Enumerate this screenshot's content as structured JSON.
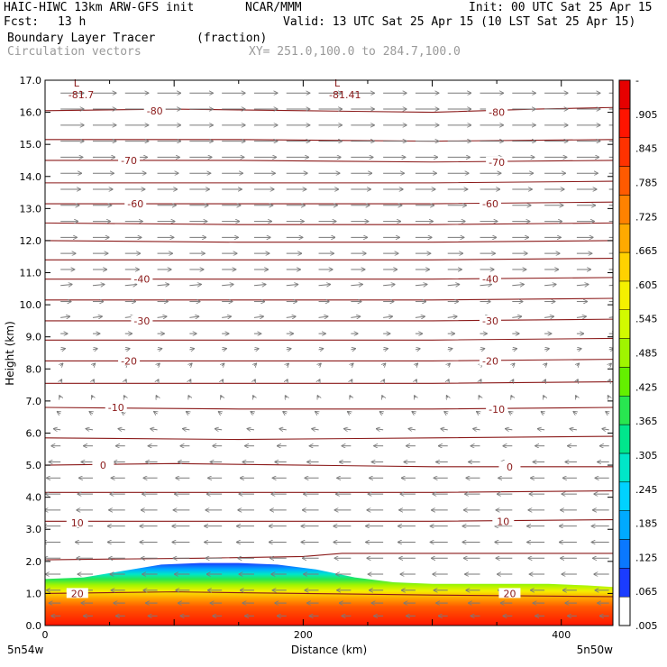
{
  "header": {
    "title": "HAIC-HIWC 13km ARW-GFS init",
    "org": "NCAR/MMM",
    "init": "Init: 00 UTC Sat 25 Apr 15",
    "fcst_label": "Fcst:",
    "fcst_value": "13 h",
    "valid": "Valid: 13 UTC Sat 25 Apr 15 (10 LST Sat 25 Apr 15)",
    "field": "Boundary Layer Tracer",
    "field_units": "(fraction)",
    "vectors": "Circulation vectors",
    "xsec": "XY= 251.0,100.0 to 284.7,100.0"
  },
  "colors": {
    "contour": "#8b1a1a",
    "vector": "#7a7a7a",
    "colorbar": [
      "#ffffff",
      "#1a3cff",
      "#0a78ff",
      "#00aaff",
      "#00d2ff",
      "#00e6c8",
      "#00e68c",
      "#28e650",
      "#64f000",
      "#a0f500",
      "#d2fa00",
      "#f5f000",
      "#ffd200",
      "#ffaa00",
      "#ff8200",
      "#ff5a00",
      "#ff3200",
      "#ff1400",
      "#e60000"
    ]
  },
  "chart_data": {
    "type": "contour",
    "xlabel": "Distance (km)",
    "ylabel": "Height (km)",
    "xlim": [
      0,
      440
    ],
    "ylim": [
      0,
      17
    ],
    "x_ticks": [
      0,
      200,
      400
    ],
    "y_ticks": [
      "0.0",
      "1.0",
      "2.0",
      "3.0",
      "4.0",
      "5.0",
      "6.0",
      "7.0",
      "8.0",
      "9.0",
      "10.0",
      "11.0",
      "12.0",
      "13.0",
      "14.0",
      "15.0",
      "16.0",
      "17.0"
    ],
    "x_endpoints": [
      "5n54w",
      "5n50w"
    ],
    "colorbar_labels": [
      "-",
      ".905",
      ".845",
      ".785",
      ".725",
      ".665",
      ".605",
      ".545",
      ".485",
      ".425",
      ".365",
      ".305",
      ".245",
      ".185",
      ".125",
      ".065",
      ".005"
    ],
    "contour_labels": [
      {
        "text": "-80",
        "x": 85,
        "y": 16.05
      },
      {
        "text": "-80",
        "x": 350,
        "y": 16.0
      },
      {
        "text": "-70",
        "x": 65,
        "y": 14.5
      },
      {
        "text": "-70",
        "x": 350,
        "y": 14.45
      },
      {
        "text": "-60",
        "x": 70,
        "y": 13.15
      },
      {
        "text": "-60",
        "x": 345,
        "y": 13.15
      },
      {
        "text": "-40",
        "x": 75,
        "y": 10.8
      },
      {
        "text": "-40",
        "x": 345,
        "y": 10.8
      },
      {
        "text": "-30",
        "x": 75,
        "y": 9.5
      },
      {
        "text": "-30",
        "x": 345,
        "y": 9.5
      },
      {
        "text": "-20",
        "x": 65,
        "y": 8.25
      },
      {
        "text": "-20",
        "x": 345,
        "y": 8.25
      },
      {
        "text": "-10",
        "x": 55,
        "y": 6.8
      },
      {
        "text": "-10",
        "x": 350,
        "y": 6.75
      },
      {
        "text": "0",
        "x": 45,
        "y": 5.0
      },
      {
        "text": "0",
        "x": 360,
        "y": 4.95
      },
      {
        "text": "10",
        "x": 25,
        "y": 3.2
      },
      {
        "text": "10",
        "x": 355,
        "y": 3.25
      },
      {
        "text": "20",
        "x": 25,
        "y": 1.0
      },
      {
        "text": "20",
        "x": 360,
        "y": 1.0
      }
    ],
    "extrema": [
      {
        "mark": "L",
        "value": "-81.7",
        "x": 18,
        "y": 16.75
      },
      {
        "mark": "L",
        "value": "-81.41",
        "x": 220,
        "y": 16.75
      }
    ],
    "contours": [
      {
        "level": -80,
        "x": [
          0,
          100,
          200,
          300,
          380,
          440
        ],
        "y": [
          16.05,
          16.1,
          16.05,
          16.0,
          16.1,
          16.15
        ]
      },
      {
        "level": -75,
        "x": [
          0,
          150,
          300,
          440
        ],
        "y": [
          15.15,
          15.15,
          15.1,
          15.15
        ]
      },
      {
        "level": -70,
        "x": [
          0,
          150,
          300,
          440
        ],
        "y": [
          14.5,
          14.5,
          14.45,
          14.5
        ]
      },
      {
        "level": -65,
        "x": [
          0,
          150,
          300,
          440
        ],
        "y": [
          13.8,
          13.8,
          13.8,
          13.85
        ]
      },
      {
        "level": -60,
        "x": [
          0,
          150,
          300,
          440
        ],
        "y": [
          13.15,
          13.15,
          13.15,
          13.2
        ]
      },
      {
        "level": -55,
        "x": [
          0,
          150,
          300,
          440
        ],
        "y": [
          12.55,
          12.5,
          12.5,
          12.55
        ]
      },
      {
        "level": -50,
        "x": [
          0,
          150,
          300,
          440
        ],
        "y": [
          12.0,
          11.95,
          11.95,
          12.0
        ]
      },
      {
        "level": -45,
        "x": [
          0,
          150,
          300,
          440
        ],
        "y": [
          11.4,
          11.4,
          11.4,
          11.45
        ]
      },
      {
        "level": -40,
        "x": [
          0,
          150,
          300,
          440
        ],
        "y": [
          10.8,
          10.8,
          10.8,
          10.85
        ]
      },
      {
        "level": -35,
        "x": [
          0,
          150,
          300,
          440
        ],
        "y": [
          10.15,
          10.15,
          10.15,
          10.2
        ]
      },
      {
        "level": -30,
        "x": [
          0,
          150,
          300,
          440
        ],
        "y": [
          9.5,
          9.5,
          9.5,
          9.55
        ]
      },
      {
        "level": -25,
        "x": [
          0,
          150,
          300,
          440
        ],
        "y": [
          8.9,
          8.9,
          8.9,
          8.95
        ]
      },
      {
        "level": -20,
        "x": [
          0,
          150,
          300,
          440
        ],
        "y": [
          8.25,
          8.25,
          8.25,
          8.3
        ]
      },
      {
        "level": -15,
        "x": [
          0,
          150,
          300,
          440
        ],
        "y": [
          7.55,
          7.55,
          7.55,
          7.6
        ]
      },
      {
        "level": -10,
        "x": [
          0,
          150,
          300,
          440
        ],
        "y": [
          6.8,
          6.75,
          6.75,
          6.8
        ]
      },
      {
        "level": -5,
        "x": [
          0,
          150,
          300,
          440
        ],
        "y": [
          5.85,
          5.8,
          5.85,
          5.9
        ]
      },
      {
        "level": 0,
        "x": [
          0,
          100,
          200,
          300,
          440
        ],
        "y": [
          5.0,
          5.05,
          5.0,
          4.95,
          4.95
        ]
      },
      {
        "level": 5,
        "x": [
          0,
          150,
          300,
          440
        ],
        "y": [
          4.15,
          4.15,
          4.15,
          4.2
        ]
      },
      {
        "level": 10,
        "x": [
          0,
          150,
          300,
          440
        ],
        "y": [
          3.25,
          3.25,
          3.25,
          3.3
        ]
      },
      {
        "level": 15,
        "x": [
          0,
          120,
          200,
          230,
          300,
          440
        ],
        "y": [
          2.05,
          2.1,
          2.15,
          2.25,
          2.25,
          2.25
        ]
      },
      {
        "level": 20,
        "x": [
          0,
          100,
          200,
          300,
          440
        ],
        "y": [
          1.0,
          1.05,
          1.0,
          0.95,
          0.9
        ]
      }
    ],
    "tracer_top": {
      "x": [
        0,
        30,
        60,
        90,
        120,
        150,
        180,
        210,
        240,
        270,
        300,
        330,
        360,
        390,
        420,
        440
      ],
      "y": [
        1.45,
        1.5,
        1.7,
        1.9,
        1.95,
        1.95,
        1.9,
        1.75,
        1.5,
        1.35,
        1.3,
        1.3,
        1.3,
        1.3,
        1.25,
        1.2
      ]
    },
    "vector_field": {
      "x": [
        0,
        25,
        50,
        75,
        100,
        125,
        150,
        175,
        200,
        225,
        250,
        275,
        300,
        325,
        350,
        375,
        400,
        425
      ],
      "levels": [
        {
          "z": 16.6,
          "u": 1.0,
          "w": 0.0
        },
        {
          "z": 16.1,
          "u": 1.0,
          "w": 0.0
        },
        {
          "z": 15.6,
          "u": 1.0,
          "w": 0.0
        },
        {
          "z": 15.1,
          "u": 1.0,
          "w": 0.0
        },
        {
          "z": 14.6,
          "u": 0.95,
          "w": 0.0
        },
        {
          "z": 14.1,
          "u": 0.9,
          "w": 0.0
        },
        {
          "z": 13.6,
          "u": 0.85,
          "w": 0.0
        },
        {
          "z": 13.1,
          "u": 0.8,
          "w": 0.0
        },
        {
          "z": 12.6,
          "u": 0.75,
          "w": 0.0
        },
        {
          "z": 12.1,
          "u": 0.7,
          "w": 0.0
        },
        {
          "z": 11.6,
          "u": 0.65,
          "w": 0.0
        },
        {
          "z": 11.1,
          "u": 0.6,
          "w": 0.0
        },
        {
          "z": 10.6,
          "u": 0.5,
          "w": 0.05
        },
        {
          "z": 10.1,
          "u": 0.45,
          "w": 0.0
        },
        {
          "z": 9.6,
          "u": 0.4,
          "w": 0.05
        },
        {
          "z": 9.1,
          "u": 0.3,
          "w": 0.0
        },
        {
          "z": 8.6,
          "u": 0.2,
          "w": 0.05
        },
        {
          "z": 8.1,
          "u": 0.1,
          "w": 0.1
        },
        {
          "z": 7.6,
          "u": 0.05,
          "w": 0.1
        },
        {
          "z": 7.1,
          "u": -0.05,
          "w": 0.1
        },
        {
          "z": 6.6,
          "u": -0.15,
          "w": 0.1
        },
        {
          "z": 6.1,
          "u": -0.3,
          "w": 0.05
        },
        {
          "z": 5.6,
          "u": -0.4,
          "w": 0.0
        },
        {
          "z": 5.1,
          "u": -0.5,
          "w": 0.0
        },
        {
          "z": 4.6,
          "u": -0.6,
          "w": 0.0
        },
        {
          "z": 4.1,
          "u": -0.65,
          "w": 0.0
        },
        {
          "z": 3.6,
          "u": -0.7,
          "w": 0.0
        },
        {
          "z": 3.1,
          "u": -0.75,
          "w": 0.0
        },
        {
          "z": 2.6,
          "u": -0.75,
          "w": 0.0
        },
        {
          "z": 2.1,
          "u": -0.7,
          "w": 0.0
        },
        {
          "z": 1.6,
          "u": -0.65,
          "w": 0.0
        },
        {
          "z": 1.1,
          "u": -0.6,
          "w": 0.0
        },
        {
          "z": 0.7,
          "u": -0.5,
          "w": 0.0
        },
        {
          "z": 0.3,
          "u": -0.4,
          "w": 0.0
        }
      ]
    }
  }
}
